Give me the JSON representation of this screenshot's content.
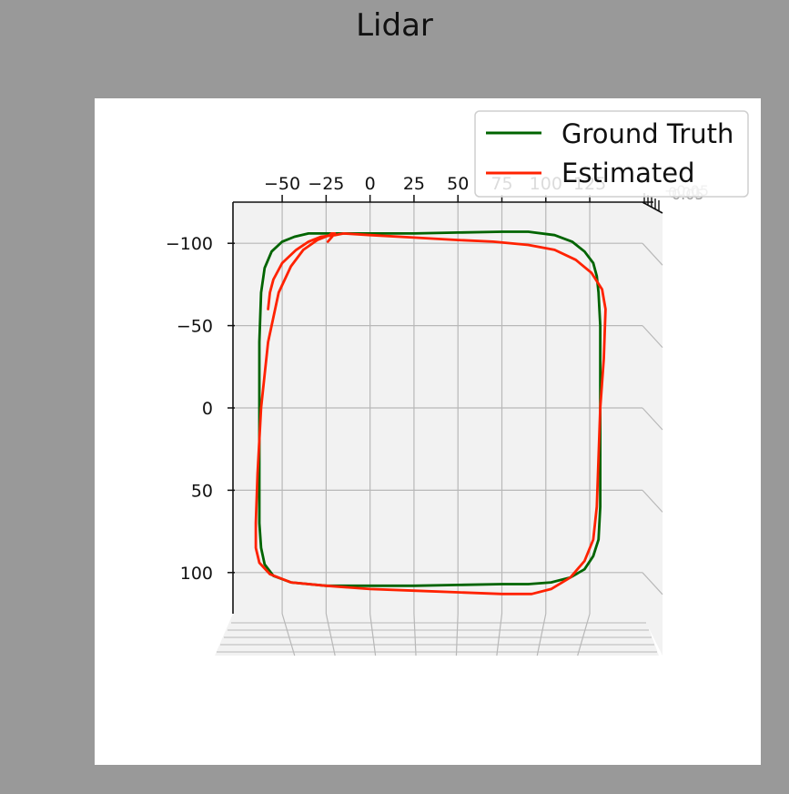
{
  "window": {
    "title": "Lidar"
  },
  "colors": {
    "ground_truth": "#006400",
    "estimated": "#ff2200",
    "pane": "#f2f2f2",
    "grid": "#b8b8b8"
  },
  "chart_data": {
    "type": "line",
    "title": "Lidar",
    "xlabel": "",
    "ylabel": "",
    "x_ticks": [
      "−50",
      "−25",
      "0",
      "25",
      "50",
      "75",
      "100",
      "125"
    ],
    "x_tick_values": [
      -50,
      -25,
      0,
      25,
      50,
      75,
      100,
      125
    ],
    "y_ticks": [
      "−100",
      "−50",
      "0",
      "50",
      "100"
    ],
    "y_tick_values": [
      -100,
      -50,
      0,
      50,
      100
    ],
    "xlim": [
      -78,
      155
    ],
    "ylim": [
      -125,
      125
    ],
    "grid": true,
    "legend_position": "top-right",
    "series": [
      {
        "name": "Ground Truth",
        "color": "#006400",
        "x": [
          -25,
          0,
          25,
          50,
          75,
          90,
          105,
          115,
          122,
          127,
          129,
          130,
          131,
          131,
          131,
          131,
          131,
          130,
          127,
          122,
          114,
          103,
          90,
          75,
          50,
          25,
          0,
          -25,
          -45,
          -55,
          -60,
          -62,
          -63,
          -63,
          -63,
          -63,
          -62,
          -60,
          -56,
          -50,
          -43,
          -35,
          -27,
          -25
        ],
        "y": [
          -106,
          -106,
          -106,
          -106.5,
          -107,
          -107,
          -105,
          -101,
          -95,
          -88,
          -80,
          -70,
          -50,
          -20,
          0,
          30,
          60,
          80,
          90,
          98,
          103,
          106,
          107,
          107,
          107.5,
          108,
          108,
          108,
          106,
          102,
          95,
          85,
          70,
          40,
          0,
          -40,
          -70,
          -85,
          -95,
          -101,
          -104,
          -106,
          -106,
          -106
        ]
      },
      {
        "name": "Estimated",
        "color": "#ff2200",
        "x": [
          -58,
          -57,
          -55,
          -50,
          -42,
          -35,
          -28,
          -20,
          -15,
          0,
          25,
          50,
          70,
          90,
          105,
          117,
          126,
          132,
          134,
          133,
          131,
          130,
          129,
          127,
          122,
          114,
          103,
          92,
          75,
          50,
          25,
          0,
          -25,
          -45,
          -57,
          -63,
          -65,
          -65,
          -64,
          -62,
          -58,
          -52,
          -45,
          -38,
          -30,
          -23,
          -22,
          -20,
          -24
        ],
        "y": [
          -60,
          -70,
          -78,
          -88,
          -96,
          -101,
          -104,
          -105,
          -106,
          -105,
          -103.5,
          -102,
          -101,
          -99,
          -96,
          -90,
          -82,
          -72,
          -60,
          -30,
          0,
          30,
          60,
          80,
          93,
          103,
          110,
          113,
          113,
          112,
          111,
          110,
          108,
          106,
          101,
          94,
          85,
          70,
          40,
          0,
          -40,
          -70,
          -86,
          -96,
          -102,
          -105,
          -106,
          -106,
          -101
        ]
      }
    ]
  }
}
